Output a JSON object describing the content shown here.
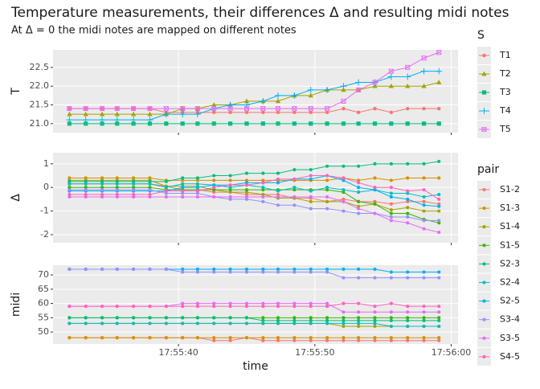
{
  "chart_data": {
    "type": "line",
    "title": "Temperature measurements, their differences Δ and resulting midi notes",
    "subtitle": "At Δ = 0 the midi notes are mapped on different notes",
    "x_label": "time",
    "x": [
      "17:55:32.0",
      "17:55:33.2",
      "17:55:34.4",
      "17:55:35.5",
      "17:55:36.7",
      "17:55:37.9",
      "17:55:39.1",
      "17:55:40.3",
      "17:55:41.4",
      "17:55:42.6",
      "17:55:43.8",
      "17:55:45.0",
      "17:55:46.2",
      "17:55:47.3",
      "17:55:48.5",
      "17:55:49.7",
      "17:55:50.9",
      "17:55:52.1",
      "17:55:53.2",
      "17:55:54.4",
      "17:55:55.6",
      "17:55:56.8",
      "17:55:58.0",
      "17:55:59.1"
    ],
    "xlim": [
      "17:55:30.8",
      "17:56:00.5"
    ],
    "xticks": [
      "17:55:40",
      "17:55:50",
      "17:56:00"
    ],
    "panels": [
      {
        "y_label": "T",
        "legend_title": "S",
        "ylim": [
          20.76,
          22.97
        ],
        "yticks": [
          {
            "value": 21,
            "label": "21.0"
          },
          21.5,
          {
            "value": 22,
            "label": "22.0"
          },
          22.5
        ],
        "series": [
          {
            "name": "T1",
            "color": "#F8766D",
            "shape": "circle",
            "values": [
              21.4,
              21.4,
              21.4,
              21.4,
              21.4,
              21.4,
              21.3,
              21.3,
              21.3,
              21.3,
              21.3,
              21.3,
              21.3,
              21.3,
              21.3,
              21.3,
              21.3,
              21.4,
              21.3,
              21.4,
              21.3,
              21.4,
              21.4,
              21.4
            ]
          },
          {
            "name": "T2",
            "color": "#A3A500",
            "shape": "triangle",
            "values": [
              21.25,
              21.25,
              21.25,
              21.25,
              21.25,
              21.25,
              21.25,
              21.4,
              21.4,
              21.5,
              21.5,
              21.6,
              21.6,
              21.6,
              21.75,
              21.75,
              21.9,
              21.9,
              21.9,
              22.0,
              22.0,
              22.0,
              22.0,
              22.1
            ]
          },
          {
            "name": "T3",
            "color": "#00BF7D",
            "shape": "square",
            "values": [
              21,
              21,
              21,
              21,
              21,
              21,
              21,
              21,
              21,
              21,
              21,
              21,
              21,
              21,
              21,
              21,
              21,
              21,
              21,
              21,
              21,
              21,
              21,
              21
            ]
          },
          {
            "name": "T4",
            "color": "#00B0F6",
            "shape": "plus",
            "values": [
              21.1,
              21.1,
              21.1,
              21.1,
              21.1,
              21.1,
              21.25,
              21.25,
              21.25,
              21.4,
              21.5,
              21.5,
              21.6,
              21.75,
              21.75,
              21.9,
              21.9,
              22.0,
              22.1,
              22.1,
              22.25,
              22.25,
              22.4,
              22.4
            ]
          },
          {
            "name": "T5",
            "color": "#E76BF3",
            "shape": "boxcross",
            "values": [
              21.4,
              21.4,
              21.4,
              21.4,
              21.4,
              21.4,
              21.4,
              21.4,
              21.4,
              21.4,
              21.4,
              21.4,
              21.4,
              21.4,
              21.4,
              21.4,
              21.4,
              21.6,
              21.9,
              22.1,
              22.4,
              22.5,
              22.75,
              22.9
            ]
          }
        ]
      },
      {
        "y_label": "Δ",
        "legend_title": "pair",
        "ylim": [
          -2.34,
          1.47
        ],
        "yticks": [
          -2,
          -1,
          0,
          1
        ],
        "series": [
          {
            "name": "S1-2",
            "color": "#F8766D",
            "shape": "circle",
            "values": [
              0.15,
              0.15,
              0.15,
              0.15,
              0.15,
              0.15,
              0.05,
              -0.1,
              -0.1,
              -0.2,
              -0.2,
              -0.3,
              -0.3,
              -0.3,
              -0.45,
              -0.45,
              -0.6,
              -0.5,
              -0.6,
              -0.6,
              -0.7,
              -0.6,
              -0.6,
              -0.7
            ]
          },
          {
            "name": "S1-3",
            "color": "#D89000",
            "shape": "circle",
            "values": [
              0.4,
              0.4,
              0.4,
              0.4,
              0.4,
              0.4,
              0.3,
              0.3,
              0.3,
              0.3,
              0.3,
              0.3,
              0.3,
              0.3,
              0.3,
              0.3,
              0.3,
              0.4,
              0.3,
              0.4,
              0.3,
              0.4,
              0.4,
              0.4
            ]
          },
          {
            "name": "S1-4",
            "color": "#A3A500",
            "shape": "circle",
            "values": [
              0.3,
              0.3,
              0.3,
              0.3,
              0.3,
              0.3,
              0.05,
              0.05,
              0.05,
              -0.1,
              -0.2,
              -0.2,
              -0.3,
              -0.45,
              -0.45,
              -0.6,
              -0.6,
              -0.6,
              -0.8,
              -0.7,
              -0.95,
              -0.85,
              -1.0,
              -1.0
            ]
          },
          {
            "name": "S1-5",
            "color": "#39B600",
            "shape": "circle",
            "values": [
              0,
              0,
              0,
              0,
              0,
              0,
              -0.1,
              -0.1,
              -0.1,
              -0.1,
              -0.1,
              -0.1,
              -0.1,
              -0.1,
              -0.1,
              -0.1,
              -0.1,
              -0.2,
              -0.6,
              -0.7,
              -1.1,
              -1.1,
              -1.35,
              -1.5
            ]
          },
          {
            "name": "S2-3",
            "color": "#00BF7D",
            "shape": "circle",
            "values": [
              0.25,
              0.25,
              0.25,
              0.25,
              0.25,
              0.25,
              0.25,
              0.4,
              0.4,
              0.5,
              0.5,
              0.6,
              0.6,
              0.6,
              0.75,
              0.75,
              0.9,
              0.9,
              0.9,
              1.0,
              1.0,
              1.0,
              1.0,
              1.1
            ]
          },
          {
            "name": "S2-4",
            "color": "#00BFC4",
            "shape": "circle",
            "values": [
              0.15,
              0.15,
              0.15,
              0.15,
              0.15,
              0.15,
              0,
              0.15,
              0.15,
              0.1,
              0,
              0.1,
              0,
              -0.15,
              0,
              -0.15,
              0,
              -0.1,
              -0.2,
              -0.1,
              -0.25,
              -0.25,
              -0.4,
              -0.3
            ]
          },
          {
            "name": "S2-5",
            "color": "#00B0F6",
            "shape": "circle",
            "values": [
              -0.15,
              -0.15,
              -0.15,
              -0.15,
              -0.15,
              -0.15,
              -0.15,
              0,
              0,
              0.1,
              0.1,
              0.2,
              0.2,
              0.2,
              0.35,
              0.35,
              0.5,
              0.3,
              0,
              -0.1,
              -0.4,
              -0.5,
              -0.75,
              -0.8
            ]
          },
          {
            "name": "S3-4",
            "color": "#9590FF",
            "shape": "circle",
            "values": [
              -0.1,
              -0.1,
              -0.1,
              -0.1,
              -0.1,
              -0.1,
              -0.25,
              -0.25,
              -0.25,
              -0.4,
              -0.5,
              -0.5,
              -0.6,
              -0.75,
              -0.75,
              -0.9,
              -0.9,
              -1.0,
              -1.1,
              -1.1,
              -1.25,
              -1.25,
              -1.4,
              -1.4
            ]
          },
          {
            "name": "S3-5",
            "color": "#E76BF3",
            "shape": "circle",
            "values": [
              -0.4,
              -0.4,
              -0.4,
              -0.4,
              -0.4,
              -0.4,
              -0.4,
              -0.4,
              -0.4,
              -0.4,
              -0.4,
              -0.4,
              -0.4,
              -0.4,
              -0.4,
              -0.4,
              -0.4,
              -0.6,
              -0.9,
              -1.1,
              -1.4,
              -1.5,
              -1.75,
              -1.9
            ]
          },
          {
            "name": "S4-5",
            "color": "#FF62BC",
            "shape": "circle",
            "values": [
              -0.3,
              -0.3,
              -0.3,
              -0.3,
              -0.3,
              -0.3,
              -0.15,
              -0.15,
              -0.15,
              0,
              0.1,
              0.1,
              0.2,
              0.35,
              0.35,
              0.5,
              0.5,
              0.4,
              0.2,
              0,
              0,
              -0.15,
              -0.1,
              -0.5
            ]
          }
        ]
      },
      {
        "y_label": "midi",
        "ylim": [
          45.8,
          73.4
        ],
        "yticks": [
          50,
          55,
          60,
          65,
          70
        ],
        "series": [
          {
            "color": "#F8766D",
            "shape": "circle",
            "values": [
              48,
              48,
              48,
              48,
              48,
              48,
              48,
              48,
              48,
              47,
              47,
              48,
              47,
              47,
              47,
              47,
              47,
              47,
              47,
              47,
              47,
              47,
              47,
              47
            ]
          },
          {
            "color": "#D89000",
            "shape": "circle",
            "values": [
              48,
              48,
              48,
              48,
              48,
              48,
              48,
              48,
              48,
              48,
              48,
              48,
              48,
              48,
              48,
              48,
              48,
              48,
              48,
              48,
              48,
              48,
              48,
              48
            ]
          },
          {
            "color": "#A3A500",
            "shape": "circle",
            "values": [
              53,
              53,
              53,
              53,
              53,
              53,
              53,
              53,
              53,
              53,
              53,
              53,
              53,
              53,
              53,
              53,
              53,
              52,
              52,
              52,
              52,
              52,
              52,
              52
            ]
          },
          {
            "color": "#39B600",
            "shape": "circle",
            "values": [
              55,
              55,
              55,
              55,
              55,
              55,
              55,
              55,
              55,
              55,
              55,
              55,
              55,
              55,
              55,
              55,
              55,
              55,
              55,
              55,
              55,
              55,
              55,
              55
            ]
          },
          {
            "color": "#00BF7D",
            "shape": "circle",
            "values": [
              55,
              55,
              55,
              55,
              55,
              55,
              55,
              55,
              55,
              55,
              55,
              55,
              54,
              54,
              54,
              54,
              54,
              54,
              54,
              54,
              54,
              54,
              54,
              54
            ]
          },
          {
            "color": "#00BFC4",
            "shape": "circle",
            "values": [
              53,
              53,
              53,
              53,
              53,
              53,
              53,
              53,
              53,
              53,
              53,
              53,
              53,
              53,
              53,
              53,
              53,
              53,
              53,
              53,
              52,
              52,
              52,
              52
            ]
          },
          {
            "color": "#00B0F6",
            "shape": "circle",
            "values": [
              72,
              72,
              72,
              72,
              72,
              72,
              72,
              72,
              72,
              72,
              72,
              72,
              72,
              72,
              72,
              72,
              72,
              72,
              72,
              72,
              71,
              71,
              71,
              71
            ]
          },
          {
            "color": "#9590FF",
            "shape": "circle",
            "values": [
              72,
              72,
              72,
              72,
              72,
              72,
              72,
              71,
              71,
              71,
              71,
              71,
              71,
              71,
              71,
              71,
              71,
              69,
              69,
              69,
              69,
              69,
              69,
              69
            ]
          },
          {
            "color": "#E76BF3",
            "shape": "circle",
            "values": [
              59,
              59,
              59,
              59,
              59,
              59,
              59,
              60,
              60,
              60,
              60,
              60,
              60,
              60,
              60,
              60,
              60,
              57,
              57,
              57,
              57,
              57,
              57,
              57
            ]
          },
          {
            "color": "#FF62BC",
            "shape": "circle",
            "values": [
              59,
              59,
              59,
              59,
              59,
              59,
              59,
              59,
              59,
              59,
              59,
              59,
              59,
              59,
              59,
              59,
              59,
              60,
              60,
              59,
              60,
              59,
              59,
              59
            ]
          }
        ]
      }
    ]
  }
}
